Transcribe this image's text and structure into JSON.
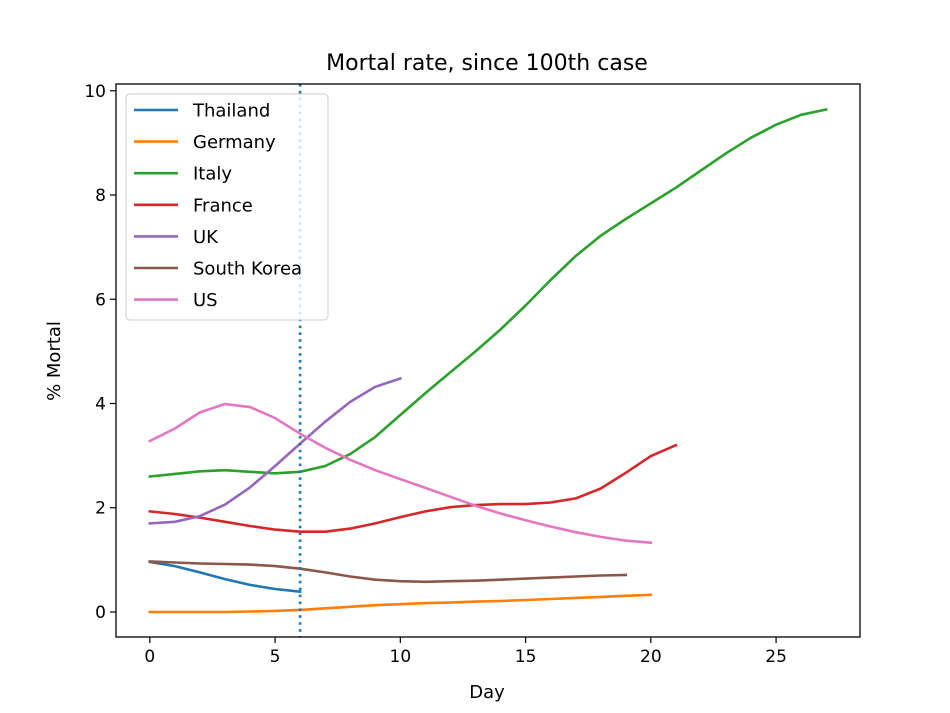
{
  "chart_data": {
    "type": "line",
    "title": "Mortal rate, since 100th case",
    "xlabel": "Day",
    "ylabel": "% Mortal",
    "xlim": [
      -1.35,
      28.35
    ],
    "ylim": [
      -0.48,
      10.13
    ],
    "xticks": [
      0,
      5,
      10,
      15,
      20,
      25
    ],
    "yticks": [
      0,
      2,
      4,
      6,
      8,
      10
    ],
    "grid": false,
    "legend_position": "top-left",
    "vline": {
      "x": 6,
      "color": "#1f77b4",
      "style": "dotted"
    },
    "series": [
      {
        "name": "Thailand",
        "color": "#1f77b4",
        "x": [
          0,
          1,
          2,
          3,
          4,
          5,
          6
        ],
        "values": [
          0.96,
          0.88,
          0.76,
          0.63,
          0.52,
          0.44,
          0.39
        ]
      },
      {
        "name": "Germany",
        "color": "#ff7f0e",
        "x": [
          0,
          1,
          2,
          3,
          4,
          5,
          6,
          7,
          8,
          9,
          10,
          11,
          12,
          13,
          14,
          15,
          16,
          17,
          18,
          19,
          20
        ],
        "values": [
          0.0,
          0.0,
          0.0,
          0.0,
          0.01,
          0.02,
          0.04,
          0.07,
          0.1,
          0.13,
          0.15,
          0.17,
          0.18,
          0.2,
          0.21,
          0.23,
          0.25,
          0.27,
          0.29,
          0.31,
          0.33
        ]
      },
      {
        "name": "Italy",
        "color": "#2ca02c",
        "x": [
          0,
          1,
          2,
          3,
          4,
          5,
          6,
          7,
          8,
          9,
          10,
          11,
          12,
          13,
          14,
          15,
          16,
          17,
          18,
          19,
          20,
          21,
          22,
          23,
          24,
          25,
          26,
          27
        ],
        "values": [
          2.6,
          2.65,
          2.7,
          2.72,
          2.69,
          2.66,
          2.69,
          2.8,
          3.03,
          3.36,
          3.78,
          4.2,
          4.6,
          5.0,
          5.42,
          5.88,
          6.37,
          6.83,
          7.22,
          7.54,
          7.84,
          8.14,
          8.47,
          8.8,
          9.1,
          9.35,
          9.54,
          9.64
        ]
      },
      {
        "name": "France",
        "color": "#d62728",
        "x": [
          0,
          1,
          2,
          3,
          4,
          5,
          6,
          7,
          8,
          9,
          10,
          11,
          12,
          13,
          14,
          15,
          16,
          17,
          18,
          19,
          20,
          21
        ],
        "values": [
          1.93,
          1.88,
          1.81,
          1.73,
          1.65,
          1.58,
          1.54,
          1.54,
          1.6,
          1.7,
          1.82,
          1.93,
          2.01,
          2.05,
          2.07,
          2.07,
          2.1,
          2.18,
          2.37,
          2.67,
          2.99,
          3.2
        ]
      },
      {
        "name": "UK",
        "color": "#9467bd",
        "x": [
          0,
          1,
          2,
          3,
          4,
          5,
          6,
          7,
          8,
          9,
          10
        ],
        "values": [
          1.7,
          1.73,
          1.84,
          2.06,
          2.39,
          2.8,
          3.23,
          3.65,
          4.03,
          4.32,
          4.48
        ]
      },
      {
        "name": "South Korea",
        "color": "#8c564b",
        "x": [
          0,
          1,
          2,
          3,
          4,
          5,
          6,
          7,
          8,
          9,
          10,
          11,
          12,
          13,
          14,
          15,
          16,
          17,
          18,
          19
        ],
        "values": [
          0.97,
          0.95,
          0.93,
          0.92,
          0.91,
          0.88,
          0.83,
          0.76,
          0.68,
          0.62,
          0.59,
          0.58,
          0.59,
          0.6,
          0.62,
          0.64,
          0.66,
          0.68,
          0.7,
          0.71
        ]
      },
      {
        "name": "US",
        "color": "#e377c2",
        "x": [
          0,
          1,
          2,
          3,
          4,
          5,
          6,
          7,
          8,
          9,
          10,
          11,
          12,
          13,
          14,
          15,
          16,
          17,
          18,
          19,
          20
        ],
        "values": [
          3.28,
          3.52,
          3.83,
          3.99,
          3.93,
          3.72,
          3.42,
          3.15,
          2.92,
          2.72,
          2.55,
          2.38,
          2.21,
          2.04,
          1.89,
          1.76,
          1.64,
          1.53,
          1.44,
          1.37,
          1.33
        ]
      }
    ]
  }
}
